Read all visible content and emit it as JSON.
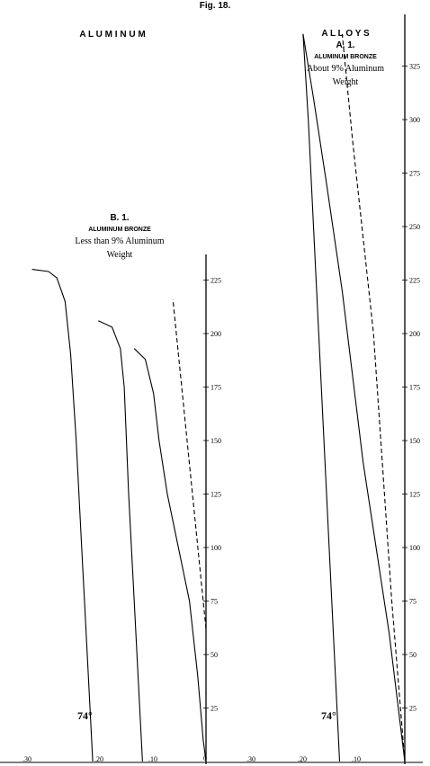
{
  "figure_label": "Fig. 18.",
  "headings": {
    "left": "A L U M I N U M",
    "right": "A L L O Y S"
  },
  "chart_data": [
    {
      "type": "line",
      "id": "B1",
      "title": "B. 1.",
      "subtitle": "ALUMINUM BRONZE",
      "caption_lines": [
        "Less than 9% Aluminum",
        "Weight"
      ],
      "temperature_label": "74°",
      "y_axis": {
        "range": [
          0,
          235
        ],
        "ticks": [
          225,
          200,
          175,
          150,
          125,
          100,
          75,
          50,
          25
        ],
        "zero_label": "0"
      },
      "x_axis": {
        "range": [
          0.33,
          0
        ],
        "ticks": [
          ".30",
          ".20",
          ".10"
        ],
        "reversed": true
      },
      "series": [
        {
          "role": "elastic-reference",
          "style": "dashed",
          "points": [
            [
              0,
              62
            ],
            [
              0.06,
              216
            ]
          ]
        },
        {
          "role": "curve",
          "points": [
            [
              0.315,
              230
            ],
            [
              0.285,
              229
            ],
            [
              0.27,
              226
            ],
            [
              0.255,
              215
            ],
            [
              0.245,
              190
            ],
            [
              0.235,
              150
            ],
            [
              0.225,
              100
            ],
            [
              0.215,
              50
            ],
            [
              0.205,
              0
            ]
          ]
        },
        {
          "role": "curve",
          "points": [
            [
              0.195,
              206
            ],
            [
              0.17,
              203
            ],
            [
              0.155,
              193
            ],
            [
              0.148,
              175
            ],
            [
              0.14,
              125
            ],
            [
              0.13,
              75
            ],
            [
              0.12,
              25
            ],
            [
              0.115,
              0
            ]
          ]
        },
        {
          "role": "curve",
          "points": [
            [
              0.13,
              193
            ],
            [
              0.11,
              188
            ],
            [
              0.095,
              172
            ],
            [
              0.085,
              150
            ],
            [
              0.07,
              125
            ],
            [
              0.05,
              100
            ],
            [
              0.03,
              75
            ],
            [
              0.015,
              40
            ],
            [
              0.005,
              10
            ],
            [
              0,
              0
            ]
          ]
        }
      ]
    },
    {
      "type": "line",
      "id": "A1",
      "title": "A. 1.",
      "subtitle": "ALUMINUM BRONZE",
      "caption_lines": [
        "About 9% Aluminum",
        "Weight"
      ],
      "temperature_label": "74°",
      "y_axis": {
        "range": [
          0,
          345
        ],
        "ticks": [
          325,
          300,
          275,
          250,
          225,
          200,
          175,
          150,
          125,
          100,
          75,
          50,
          25
        ]
      },
      "x_axis": {
        "range": [
          0.36,
          0
        ],
        "ticks": [
          ".30",
          ".20",
          ".10"
        ],
        "reversed": true
      },
      "series": [
        {
          "role": "elastic-reference",
          "style": "dashed",
          "points": [
            [
              0,
              0
            ],
            [
              0.025,
              75
            ],
            [
              0.06,
              200
            ],
            [
              0.1,
              290
            ],
            [
              0.12,
              340
            ]
          ]
        },
        {
          "role": "curve",
          "points": [
            [
              0.195,
              340
            ],
            [
              0.175,
              310
            ],
            [
              0.15,
              270
            ],
            [
              0.12,
              220
            ],
            [
              0.1,
              180
            ],
            [
              0.08,
              140
            ],
            [
              0.055,
              100
            ],
            [
              0.03,
              60
            ],
            [
              0.01,
              20
            ],
            [
              0,
              0
            ]
          ]
        },
        {
          "role": "curve",
          "points": [
            [
              0.195,
              340
            ],
            [
              0.185,
              300
            ],
            [
              0.175,
              250
            ],
            [
              0.165,
              200
            ],
            [
              0.155,
              150
            ],
            [
              0.145,
              100
            ],
            [
              0.135,
              50
            ],
            [
              0.125,
              0
            ]
          ]
        }
      ]
    }
  ]
}
